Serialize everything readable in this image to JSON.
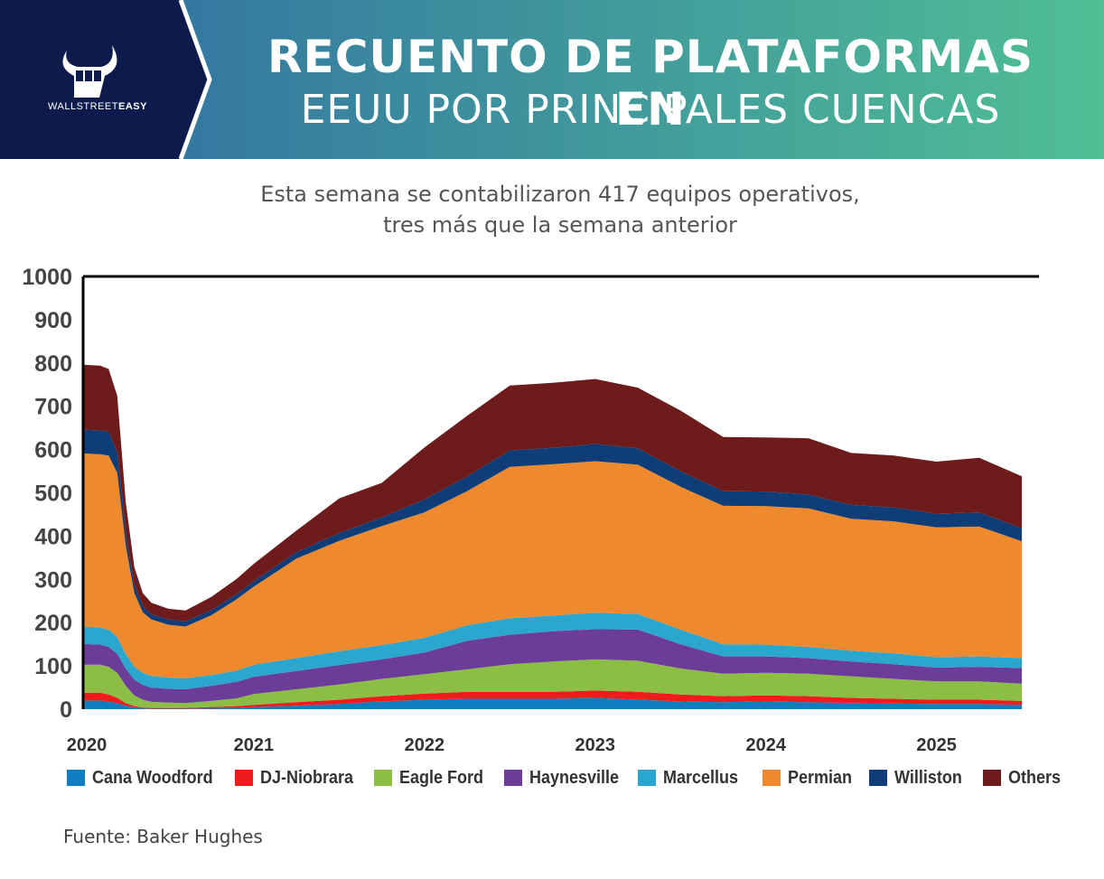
{
  "header": {
    "title_line1": "RECUENTO DE PLATAFORMAS EN",
    "title_line2": "EEUU POR PRINCIPALES CUENCAS",
    "logo_text_light": "WALLSTREET",
    "logo_text_bold": "EASY",
    "colors": {
      "navy": "#0d1b4c",
      "gradient_start": "#2f6aa3",
      "gradient_end": "#4fbf95"
    }
  },
  "subtitle": {
    "line1": "Esta semana se contabilizaron 417 equipos operativos,",
    "line2": "tres más que la semana anterior"
  },
  "source": "Fuente: Baker Hughes",
  "chart_data": {
    "type": "area",
    "stacked": true,
    "x": [
      2020.0,
      2020.1,
      2020.15,
      2020.2,
      2020.25,
      2020.3,
      2020.35,
      2020.4,
      2020.5,
      2020.6,
      2020.75,
      2020.9,
      2021.0,
      2021.25,
      2021.5,
      2021.75,
      2022.0,
      2022.25,
      2022.5,
      2022.75,
      2023.0,
      2023.25,
      2023.5,
      2023.75,
      2024.0,
      2024.25,
      2024.5,
      2024.75,
      2025.0,
      2025.25,
      2025.5
    ],
    "series": [
      {
        "name": "Cana Woodford",
        "color": "#0f7dc2",
        "values": [
          20,
          20,
          18,
          14,
          8,
          4,
          2,
          1,
          1,
          1,
          2,
          3,
          5,
          8,
          12,
          18,
          22,
          24,
          24,
          24,
          26,
          22,
          18,
          16,
          18,
          16,
          14,
          13,
          12,
          12,
          10
        ]
      },
      {
        "name": "DJ-Niobrara",
        "color": "#ee1c1c",
        "values": [
          18,
          18,
          16,
          12,
          6,
          3,
          2,
          2,
          2,
          2,
          3,
          4,
          5,
          8,
          10,
          12,
          14,
          16,
          16,
          16,
          17,
          18,
          16,
          14,
          14,
          14,
          12,
          11,
          10,
          10,
          9
        ]
      },
      {
        "name": "Eagle Ford",
        "color": "#8cbd45",
        "values": [
          65,
          65,
          64,
          58,
          40,
          25,
          18,
          14,
          12,
          11,
          14,
          18,
          25,
          30,
          35,
          40,
          45,
          52,
          64,
          70,
          72,
          72,
          60,
          52,
          52,
          52,
          50,
          46,
          42,
          42,
          40
        ]
      },
      {
        "name": "Haynesville",
        "color": "#6b3d98",
        "values": [
          48,
          46,
          46,
          44,
          40,
          36,
          34,
          33,
          32,
          32,
          35,
          38,
          40,
          42,
          45,
          45,
          50,
          66,
          68,
          70,
          70,
          72,
          56,
          40,
          38,
          36,
          34,
          34,
          32,
          34,
          36
        ]
      },
      {
        "name": "Marcellus",
        "color": "#2ba7cf",
        "values": [
          40,
          40,
          40,
          38,
          34,
          30,
          28,
          27,
          26,
          25,
          25,
          26,
          28,
          30,
          32,
          33,
          34,
          36,
          38,
          36,
          38,
          36,
          34,
          28,
          27,
          26,
          25,
          25,
          24,
          24,
          23
        ]
      },
      {
        "name": "Permian",
        "color": "#ee8a2d",
        "values": [
          400,
          400,
          402,
          380,
          250,
          170,
          140,
          130,
          122,
          120,
          138,
          165,
          180,
          230,
          255,
          275,
          290,
          310,
          350,
          350,
          350,
          345,
          330,
          320,
          320,
          320,
          305,
          305,
          300,
          300,
          270
        ]
      },
      {
        "name": "Williston",
        "color": "#0f3d78",
        "values": [
          55,
          55,
          55,
          48,
          30,
          20,
          14,
          12,
          12,
          12,
          12,
          12,
          13,
          15,
          18,
          20,
          30,
          34,
          38,
          38,
          40,
          38,
          36,
          34,
          34,
          32,
          32,
          32,
          32,
          33,
          30
        ]
      },
      {
        "name": "Others",
        "color": "#6e1b1b",
        "values": [
          150,
          150,
          145,
          130,
          70,
          40,
          30,
          27,
          25,
          25,
          30,
          35,
          40,
          50,
          80,
          80,
          120,
          140,
          150,
          150,
          150,
          140,
          140,
          125,
          125,
          130,
          120,
          120,
          120,
          126,
          120
        ]
      }
    ],
    "xticks": [
      "2020",
      "2021",
      "2022",
      "2023",
      "2024",
      "2025"
    ],
    "yticks": [
      "0",
      "100",
      "200",
      "300",
      "400",
      "500",
      "600",
      "700",
      "800",
      "900",
      "1000"
    ],
    "ylim": [
      0,
      1000
    ],
    "xlim": [
      2020.0,
      2025.6
    ],
    "grid": false,
    "legend_position": "bottom"
  }
}
